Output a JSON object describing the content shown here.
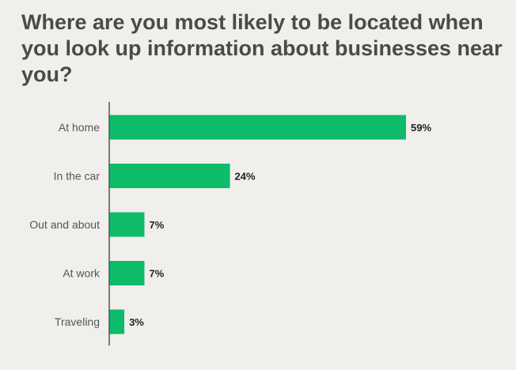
{
  "title": "Where are you most likely to be located when you look up information about businesses near you?",
  "colors": {
    "background": "#f0efeb",
    "bar": "#0dbb68",
    "axis": "#555555",
    "title": "#4a4a4a"
  },
  "chart_data": {
    "type": "bar",
    "orientation": "horizontal",
    "title": "Where are you most likely to be located when you look up information about businesses near you?",
    "categories": [
      "At home",
      "In the car",
      "Out and about",
      "At work",
      "Traveling"
    ],
    "values": [
      59,
      24,
      7,
      7,
      3
    ],
    "value_labels": [
      "59%",
      "24%",
      "7%",
      "7%",
      "3%"
    ],
    "unit": "%",
    "xlabel": "",
    "ylabel": "",
    "xlim": [
      0,
      59
    ],
    "grid": false,
    "legend": "none"
  }
}
